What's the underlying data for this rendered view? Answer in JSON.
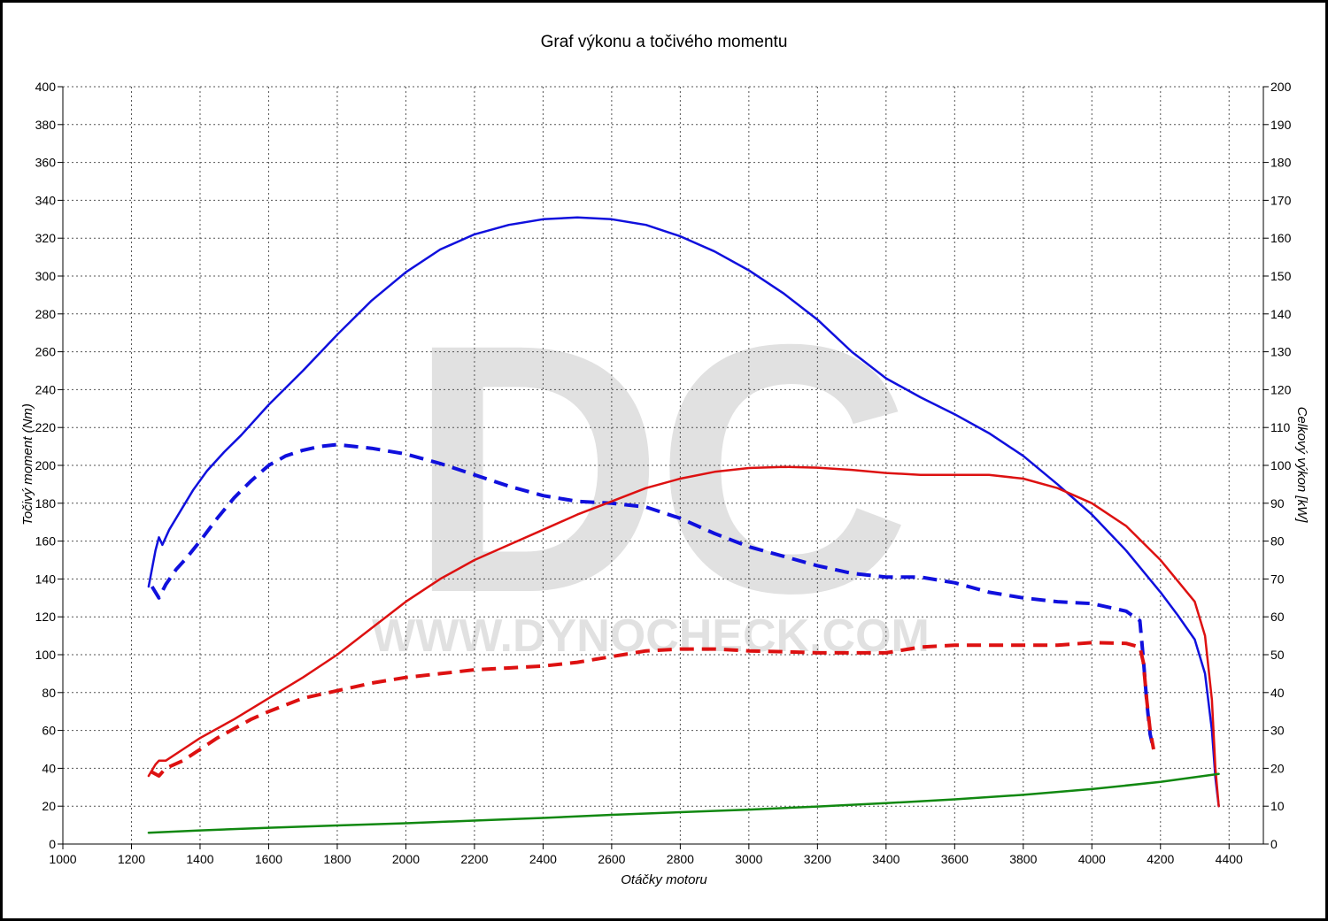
{
  "chart_data": {
    "type": "line",
    "title": "Graf výkonu a točivého momentu",
    "xlabel": "Otáčky motoru",
    "ylabel_left": "Točivý moment (Nm)",
    "ylabel_right": "Celkový výkon [kW]",
    "xlim": [
      1000,
      4500
    ],
    "ylim_left": [
      0,
      400
    ],
    "ylim_right": [
      0,
      200
    ],
    "x_ticks": [
      1000,
      1200,
      1400,
      1600,
      1800,
      2000,
      2200,
      2400,
      2600,
      2800,
      3000,
      3200,
      3400,
      3600,
      3800,
      4000,
      4200,
      4400
    ],
    "y_ticks_left": [
      0,
      20,
      40,
      60,
      80,
      100,
      120,
      140,
      160,
      180,
      200,
      220,
      240,
      260,
      280,
      300,
      320,
      340,
      360,
      380,
      400
    ],
    "y_ticks_right": [
      0,
      10,
      20,
      30,
      40,
      50,
      60,
      70,
      80,
      90,
      100,
      110,
      120,
      130,
      140,
      150,
      160,
      170,
      180,
      190,
      200
    ],
    "grid": true,
    "watermark": {
      "letters": "DC",
      "text": "WWW.DYNOCHECK.COM"
    },
    "series": [
      {
        "key": "torque_tuned",
        "axis": "left",
        "color": "#1010dd",
        "dash": false,
        "x": [
          1250,
          1270,
          1280,
          1290,
          1310,
          1340,
          1380,
          1420,
          1470,
          1520,
          1600,
          1700,
          1800,
          1900,
          2000,
          2100,
          2200,
          2300,
          2400,
          2500,
          2600,
          2700,
          2800,
          2900,
          3000,
          3100,
          3200,
          3300,
          3400,
          3500,
          3600,
          3700,
          3800,
          3900,
          4000,
          4100,
          4200,
          4250,
          4300,
          4330,
          4350,
          4360,
          4370
        ],
        "y": [
          136,
          155,
          162,
          158,
          166,
          175,
          187,
          197,
          207,
          216,
          232,
          250,
          269,
          287,
          302,
          314,
          322,
          327,
          330,
          331,
          330,
          327,
          321,
          313,
          303,
          291,
          277,
          260,
          246,
          236,
          227,
          217,
          205,
          190,
          174,
          155,
          133,
          121,
          108,
          90,
          60,
          35,
          20
        ]
      },
      {
        "key": "torque_stock",
        "axis": "left",
        "color": "#1010dd",
        "dash": true,
        "x": [
          1260,
          1280,
          1300,
          1330,
          1360,
          1400,
          1450,
          1500,
          1550,
          1600,
          1650,
          1700,
          1750,
          1800,
          1850,
          1900,
          2000,
          2100,
          2200,
          2300,
          2400,
          2500,
          2600,
          2700,
          2800,
          2900,
          3000,
          3100,
          3200,
          3300,
          3400,
          3500,
          3600,
          3700,
          3800,
          3900,
          4000,
          4100,
          4140,
          4150,
          4160,
          4170,
          4180
        ],
        "y": [
          136,
          130,
          137,
          145,
          151,
          160,
          172,
          183,
          192,
          200,
          205,
          208,
          210,
          211,
          210,
          209,
          206,
          201,
          195,
          189,
          184,
          181,
          180,
          178,
          172,
          164,
          157,
          152,
          147,
          143,
          141,
          141,
          138,
          133,
          130,
          128,
          127,
          123,
          118,
          98,
          75,
          58,
          50
        ]
      },
      {
        "key": "power_tuned",
        "axis": "right",
        "color": "#dd1111",
        "dash": false,
        "x": [
          1250,
          1270,
          1280,
          1300,
          1350,
          1400,
          1500,
          1600,
          1700,
          1800,
          1900,
          2000,
          2100,
          2200,
          2300,
          2400,
          2500,
          2600,
          2700,
          2800,
          2900,
          3000,
          3100,
          3200,
          3300,
          3400,
          3500,
          3600,
          3700,
          3800,
          3900,
          4000,
          4100,
          4200,
          4300,
          4330,
          4350,
          4360,
          4370
        ],
        "y": [
          18,
          21,
          22,
          22,
          25,
          28,
          33,
          38.5,
          44,
          50,
          57,
          64,
          70,
          75,
          79,
          83,
          87,
          90.5,
          94,
          96.5,
          98.3,
          99.3,
          99.6,
          99.4,
          98.8,
          98,
          97.5,
          97.5,
          97.5,
          96.5,
          94,
          90,
          84,
          75,
          64,
          55,
          38,
          20,
          10
        ]
      },
      {
        "key": "power_stock",
        "axis": "right",
        "color": "#dd1111",
        "dash": true,
        "x": [
          1260,
          1280,
          1300,
          1350,
          1400,
          1450,
          1500,
          1550,
          1600,
          1700,
          1800,
          1900,
          2000,
          2100,
          2200,
          2300,
          2400,
          2500,
          2600,
          2700,
          2800,
          2900,
          3000,
          3100,
          3200,
          3300,
          3400,
          3500,
          3600,
          3700,
          3800,
          3900,
          4000,
          4100,
          4140,
          4150,
          4160,
          4170,
          4180
        ],
        "y": [
          19,
          18,
          20,
          22,
          25,
          28,
          30.5,
          33,
          35,
          38.5,
          40.5,
          42.5,
          44,
          45,
          46,
          46.5,
          47,
          48,
          49.5,
          51,
          51.5,
          51.5,
          51,
          50.8,
          50.5,
          50.5,
          50.5,
          52,
          52.5,
          52.5,
          52.5,
          52.5,
          53.2,
          53,
          52,
          48,
          38,
          30,
          25
        ]
      },
      {
        "key": "loss",
        "axis": "right",
        "color": "#118811",
        "dash": false,
        "x": [
          1250,
          1400,
          1600,
          1800,
          2000,
          2200,
          2400,
          2600,
          2800,
          3000,
          3200,
          3400,
          3600,
          3800,
          4000,
          4200,
          4370
        ],
        "y": [
          3,
          3.6,
          4.3,
          4.9,
          5.5,
          6.2,
          6.9,
          7.7,
          8.4,
          9.1,
          9.9,
          10.8,
          11.8,
          13,
          14.5,
          16.4,
          18.5
        ]
      }
    ]
  }
}
